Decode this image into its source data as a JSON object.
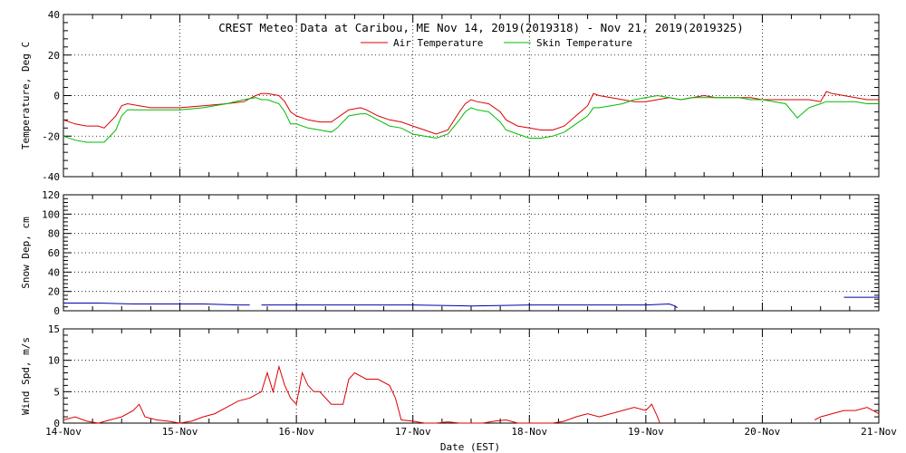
{
  "title": "CREST Meteo Data at Caribou, ME   Nov 14, 2019(2019318) - Nov 21, 2019(2019325)",
  "xlabel": "Date (EST)",
  "x_ticks": [
    "14-Nov",
    "15-Nov",
    "16-Nov",
    "17-Nov",
    "18-Nov",
    "19-Nov",
    "20-Nov",
    "21-Nov"
  ],
  "colors": {
    "air": "#dd0000",
    "skin": "#00bb00",
    "snow": "#0000aa",
    "wind": "#dd0000"
  },
  "chart_data": [
    {
      "type": "line",
      "ylabel": "Temperature, Deg C",
      "ylim": [
        -40,
        40
      ],
      "y_ticks": [
        "40",
        "20",
        "0",
        "-20",
        "-40"
      ],
      "grid": true,
      "legend_position": "top-center",
      "x_unit": "days since 14-Nov 00:00 EST",
      "series": [
        {
          "name": "Air Temperature",
          "x": [
            0,
            0.1,
            0.2,
            0.3,
            0.35,
            0.45,
            0.5,
            0.55,
            0.65,
            0.75,
            0.85,
            1,
            1.2,
            1.4,
            1.55,
            1.65,
            1.7,
            1.75,
            1.85,
            1.9,
            1.95,
            2,
            2.1,
            2.2,
            2.3,
            2.35,
            2.45,
            2.55,
            2.6,
            2.7,
            2.8,
            2.9,
            3,
            3.1,
            3.2,
            3.3,
            3.4,
            3.45,
            3.5,
            3.55,
            3.65,
            3.75,
            3.8,
            3.9,
            4,
            4.1,
            4.2,
            4.3,
            4.4,
            4.5,
            4.55,
            4.6,
            4.7,
            4.8,
            4.9,
            5,
            5.1,
            5.2,
            5.3,
            5.4,
            5.5,
            5.6,
            5.7,
            5.8,
            5.9,
            6,
            6.1,
            6.2,
            6.3,
            6.4,
            6.5,
            6.55,
            6.6,
            6.7,
            6.8,
            6.9,
            7
          ],
          "values": [
            -12,
            -14,
            -15,
            -15,
            -16,
            -10,
            -5,
            -4,
            -5,
            -6,
            -6,
            -6,
            -5,
            -4,
            -3,
            0,
            1,
            1,
            0,
            -3,
            -8,
            -10,
            -12,
            -13,
            -13,
            -11,
            -7,
            -6,
            -7,
            -10,
            -12,
            -13,
            -15,
            -17,
            -19,
            -17,
            -8,
            -4,
            -2,
            -3,
            -4,
            -8,
            -12,
            -15,
            -16,
            -17,
            -17,
            -15,
            -10,
            -5,
            1,
            0,
            -1,
            -2,
            -3,
            -3,
            -2,
            -1,
            -2,
            -1,
            0,
            -1,
            -1,
            -1,
            -1,
            -2,
            -2,
            -2,
            -2,
            -2,
            -3,
            2,
            1,
            0,
            -1,
            -2,
            -2
          ]
        },
        {
          "name": "Skin Temperature",
          "x": [
            0,
            0.1,
            0.2,
            0.3,
            0.35,
            0.45,
            0.5,
            0.55,
            0.65,
            0.75,
            0.85,
            1,
            1.2,
            1.4,
            1.55,
            1.65,
            1.7,
            1.75,
            1.85,
            1.9,
            1.95,
            2,
            2.1,
            2.2,
            2.3,
            2.35,
            2.45,
            2.55,
            2.6,
            2.7,
            2.8,
            2.9,
            3,
            3.1,
            3.2,
            3.3,
            3.4,
            3.45,
            3.5,
            3.55,
            3.65,
            3.75,
            3.8,
            3.9,
            4,
            4.1,
            4.2,
            4.3,
            4.4,
            4.5,
            4.55,
            4.6,
            4.7,
            4.8,
            4.9,
            5,
            5.1,
            5.2,
            5.3,
            5.4,
            5.5,
            5.6,
            5.7,
            5.8,
            5.9,
            6,
            6.1,
            6.2,
            6.3,
            6.4,
            6.5,
            6.55,
            6.6,
            6.7,
            6.8,
            6.9,
            7
          ],
          "values": [
            -20,
            -22,
            -23,
            -23,
            -23,
            -17,
            -10,
            -7,
            -7,
            -7,
            -7,
            -7,
            -6,
            -4,
            -2,
            -1,
            -2,
            -2,
            -4,
            -8,
            -14,
            -14,
            -16,
            -17,
            -18,
            -16,
            -10,
            -9,
            -9,
            -12,
            -15,
            -16,
            -19,
            -20,
            -21,
            -19,
            -12,
            -8,
            -6,
            -7,
            -8,
            -13,
            -17,
            -19,
            -21,
            -21,
            -20,
            -18,
            -14,
            -10,
            -6,
            -6,
            -5,
            -4,
            -2,
            -1,
            0,
            -1,
            -2,
            -1,
            -1,
            -1,
            -1,
            -1,
            -2,
            -2,
            -3,
            -4,
            -11,
            -6,
            -4,
            -3,
            -3,
            -3,
            -3,
            -4,
            -4
          ]
        }
      ]
    },
    {
      "type": "line",
      "ylabel": "Snow Dep, cm",
      "ylim": [
        0,
        120
      ],
      "y_ticks": [
        "120",
        "100",
        "80",
        "60",
        "40",
        "20",
        "0"
      ],
      "grid": true,
      "x_unit": "days since 14-Nov 00:00 EST",
      "series": [
        {
          "segments": [
            {
              "x": [
                0,
                0.3,
                0.6,
                0.9,
                1.2,
                1.5,
                1.6
              ],
              "values": [
                8,
                8,
                7,
                7,
                7,
                6,
                6
              ]
            },
            {
              "x": [
                1.7,
                2.0,
                2.5,
                3.0,
                3.5,
                4.0,
                4.5,
                5.0,
                5.2,
                5.25,
                5.27
              ],
              "values": [
                6,
                6,
                6,
                6,
                5,
                6,
                6,
                6,
                7,
                5,
                3
              ]
            },
            {
              "x": [
                6.7,
                6.85,
                7.0
              ],
              "values": [
                14,
                14,
                14
              ]
            }
          ]
        }
      ]
    },
    {
      "type": "line",
      "ylabel": "Wind Spd, m/s",
      "ylim": [
        0,
        15
      ],
      "y_ticks": [
        "15",
        "10",
        "5",
        "0"
      ],
      "grid": true,
      "x_unit": "days since 14-Nov 00:00 EST",
      "series": [
        {
          "segments": [
            {
              "x": [
                0,
                0.1,
                0.2,
                0.3,
                0.4,
                0.5,
                0.6,
                0.65,
                0.7,
                0.8,
                0.9,
                1,
                1.1,
                1.2,
                1.3,
                1.4,
                1.5,
                1.6,
                1.7,
                1.75,
                1.8,
                1.85,
                1.9,
                1.95,
                2,
                2.05,
                2.1,
                2.15,
                2.2,
                2.3,
                2.4,
                2.45,
                2.5,
                2.6,
                2.7,
                2.8,
                2.85,
                2.9,
                3,
                3.1,
                3.2,
                3.3,
                3.4,
                3.5,
                3.6,
                3.7,
                3.8,
                3.9,
                4,
                4.1,
                4.2,
                4.3,
                4.4,
                4.5,
                4.6,
                4.7,
                4.8,
                4.9,
                5,
                5.05,
                5.1,
                5.12
              ],
              "values": [
                0.5,
                1,
                0.3,
                0,
                0.5,
                1,
                2,
                3,
                1,
                0.5,
                0.3,
                0,
                0.3,
                1,
                1.5,
                2.5,
                3.5,
                4,
                5,
                8,
                5,
                9,
                6,
                4,
                3,
                8,
                6,
                5,
                5,
                3,
                3,
                7,
                8,
                7,
                7,
                6,
                4,
                0.5,
                0.3,
                0,
                0,
                0.2,
                0,
                0,
                0,
                0.3,
                0.5,
                0,
                0,
                0,
                0,
                0.3,
                1,
                1.5,
                1,
                1.5,
                2,
                2.5,
                2,
                3,
                1,
                0
              ]
            },
            {
              "x": [
                6.45,
                6.5,
                6.6,
                6.7,
                6.8,
                6.9,
                7
              ],
              "values": [
                0.5,
                1,
                1.5,
                2,
                2,
                2.5,
                1.5
              ]
            }
          ]
        }
      ]
    }
  ]
}
